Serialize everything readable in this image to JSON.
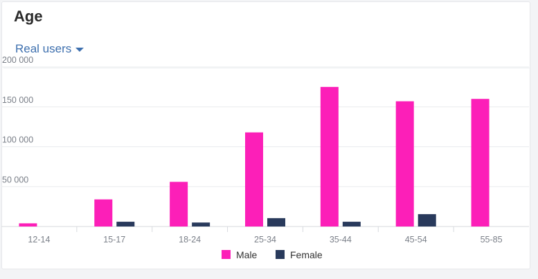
{
  "card": {
    "title": "Age",
    "filter_label": "Real users"
  },
  "colors": {
    "male": "#fc1fb8",
    "female": "#293a5c",
    "grid": "#e9ebee",
    "filter": "#3d6fae"
  },
  "chart_data": {
    "type": "bar",
    "categories": [
      "12-14",
      "15-17",
      "18-24",
      "25-34",
      "35-44",
      "45-54",
      "55-85"
    ],
    "series": [
      {
        "name": "Male",
        "values": [
          4000,
          34000,
          56000,
          118000,
          175000,
          157000,
          160000
        ]
      },
      {
        "name": "Female",
        "values": [
          0,
          6000,
          5000,
          10500,
          6000,
          15500,
          0
        ]
      }
    ],
    "yticks": [
      50000,
      100000,
      150000,
      200000
    ],
    "ytick_labels": [
      "50 000",
      "100 000",
      "150 000",
      "200 000"
    ],
    "ylim": [
      0,
      200000
    ],
    "title": "",
    "xlabel": "",
    "ylabel": "",
    "grid": true,
    "legend_position": "bottom-center"
  }
}
